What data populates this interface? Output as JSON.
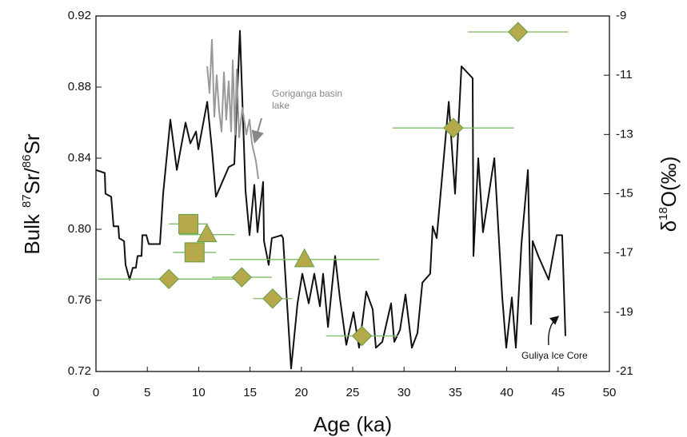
{
  "chart_data": {
    "type": "line",
    "xlabel": "Age (ka)",
    "ylabel": [
      "Bulk",
      "87",
      "Sr/",
      "86",
      "Sr"
    ],
    "y2label": [
      "δ",
      "18",
      "O(‰)"
    ],
    "xlim": [
      0,
      50
    ],
    "xticks": [
      0,
      5,
      10,
      15,
      20,
      25,
      30,
      35,
      40,
      45,
      50
    ],
    "ylim": [
      0.72,
      0.92
    ],
    "yticks": [
      0.72,
      0.76,
      {
        "value": 0.8,
        "label": "0.80"
      },
      0.84,
      0.88,
      0.92
    ],
    "y2lim": [
      -21,
      -9
    ],
    "y2ticks": [
      -21,
      -19,
      -17,
      -15,
      -13,
      -11,
      -9
    ],
    "annotations": [
      {
        "text": [
          "Goriganga basin",
          "lake"
        ],
        "color": "#888888"
      },
      {
        "text": [
          "Guliya Ice Core"
        ],
        "color": "#111111"
      }
    ],
    "series": [
      {
        "type": "line",
        "axis": "y2",
        "color": "#111111",
        "x": [
          0,
          0.86,
          0.93,
          1.48,
          1.71,
          2.18,
          2.26,
          2.73,
          2.88,
          3.27,
          3.58,
          3.89,
          4.05,
          4.44,
          4.52,
          4.91,
          5.14,
          6.23,
          6.54,
          7.24,
          7.87,
          8.72,
          9.19,
          9.74,
          9.97,
          10.83,
          11.29,
          11.68,
          12.93,
          13.47,
          14.02,
          14.56,
          14.95,
          15.42,
          15.73,
          16.28,
          16.36,
          16.82,
          17.13,
          18.07,
          18.22,
          19.0,
          19.63,
          20.09,
          20.72,
          21.26,
          21.81,
          22.12,
          22.59,
          23.29,
          23.75,
          24.38,
          25.08,
          25.62,
          26.32,
          26.95,
          27.26,
          27.88,
          28.74,
          29.05,
          29.6,
          30.14,
          30.76,
          31.31,
          31.78,
          32.55,
          32.79,
          33.18,
          34.35,
          34.97,
          35.59,
          36.68,
          36.76,
          37.23,
          37.69,
          38.79,
          39.56,
          39.95,
          40.5,
          40.89,
          41.43,
          42.06,
          42.37,
          42.52,
          43.07,
          44.08,
          44.86,
          45.4,
          45.72
        ],
        "values": [
          -14.2,
          -14.3,
          -15.0,
          -15.1,
          -16.1,
          -16.1,
          -16.5,
          -16.6,
          -17.4,
          -17.9,
          -17.5,
          -17.5,
          -17.1,
          -17.1,
          -16.4,
          -16.4,
          -16.7,
          -16.7,
          -15.0,
          -12.5,
          -14.2,
          -12.6,
          -13.3,
          -12.9,
          -13.5,
          -11.9,
          -13.5,
          -15.1,
          -14.1,
          -14.0,
          -9.5,
          -14.9,
          -16.4,
          -14.7,
          -16.3,
          -14.6,
          -16.6,
          -17.4,
          -16.5,
          -16.4,
          -16.5,
          -20.9,
          -18.7,
          -17.7,
          -18.7,
          -17.7,
          -18.8,
          -17.7,
          -19.5,
          -17.1,
          -18.5,
          -20.1,
          -19.0,
          -20.2,
          -18.3,
          -18.9,
          -20.2,
          -20.0,
          -18.7,
          -20.0,
          -19.6,
          -18.4,
          -20.2,
          -19.7,
          -18.0,
          -17.7,
          -16.1,
          -16.5,
          -11.9,
          -15.0,
          -10.7,
          -11.1,
          -17.1,
          -13.8,
          -16.3,
          -13.8,
          -18.5,
          -20.2,
          -18.5,
          -20.2,
          -16.7,
          -14.2,
          -19.4,
          -16.6,
          -17.1,
          -17.9,
          -16.4,
          -16.4,
          -19.8
        ]
      },
      {
        "type": "line",
        "axis": "y2",
        "color": "#999999",
        "x": [
          10.83,
          11.06,
          11.29,
          11.53,
          11.76,
          11.99,
          12.23,
          12.46,
          12.69,
          12.93,
          13.16,
          13.32,
          13.55,
          13.71,
          13.94,
          14.25,
          14.64,
          14.95,
          15.19,
          15.58,
          15.81
        ],
        "values": [
          -10.7,
          -11.6,
          -9.8,
          -12.4,
          -11.0,
          -12.2,
          -12.9,
          -10.9,
          -12.5,
          -11.2,
          -12.9,
          -10.5,
          -13.0,
          -10.8,
          -13.1,
          -12.1,
          -13.0,
          -12.5,
          -13.3,
          -13.9,
          -14.5
        ]
      },
      {
        "type": "scatter",
        "marker": "diamond",
        "color": "#b5a94c",
        "edgecolor": "#5f9e44",
        "errcolor": "#7dbb63",
        "x": [
          41.1,
          34.8,
          7.1,
          14.2,
          17.2,
          25.9
        ],
        "values": [
          0.911,
          0.857,
          0.772,
          0.773,
          0.761,
          0.74
        ],
        "xerr": [
          4.9,
          5.9,
          6.9,
          2.9,
          1.9,
          3.5
        ]
      },
      {
        "type": "scatter",
        "marker": "triangle",
        "color": "#b5a94c",
        "edgecolor": "#5f9e44",
        "errcolor": "#7dbb63",
        "x": [
          10.8,
          20.3
        ],
        "values": [
          0.797,
          0.783
        ],
        "xerr": [
          2.7,
          7.3
        ]
      },
      {
        "type": "scatter",
        "marker": "square",
        "color": "#b5a94c",
        "edgecolor": "#5f9e44",
        "errcolor": "#7dbb63",
        "x": [
          9.0,
          9.6
        ],
        "values": [
          0.803,
          0.787
        ],
        "xerr": [
          1.9,
          2.1
        ]
      }
    ]
  }
}
